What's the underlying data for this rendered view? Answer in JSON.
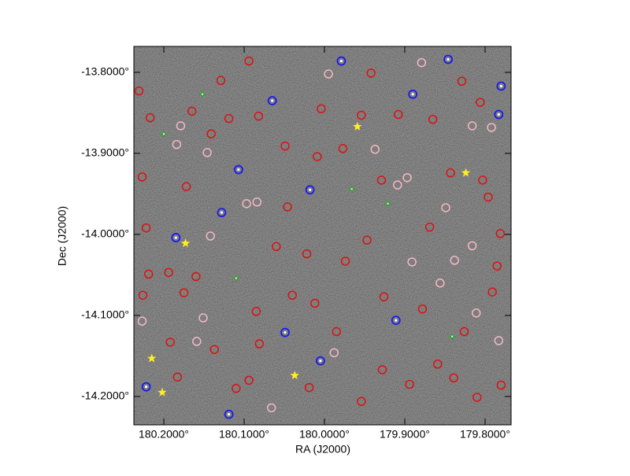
{
  "chart_data": {
    "type": "scatter",
    "x_label": "RA (J2000)",
    "y_label": "Dec (J2000)",
    "xlim": [
      180.2373,
      179.7676
    ],
    "ylim": [
      -14.235,
      -13.768
    ],
    "xticks": [
      {
        "value": 180.2,
        "label": "180.2000°"
      },
      {
        "value": 180.1,
        "label": "180.1000°"
      },
      {
        "value": 180.0,
        "label": "180.0000°"
      },
      {
        "value": 179.9,
        "label": "179.9000°"
      },
      {
        "value": 179.8,
        "label": "179.8000°"
      }
    ],
    "yticks": [
      {
        "value": -13.8,
        "label": "-13.8000°"
      },
      {
        "value": -13.9,
        "label": "-13.9000°"
      },
      {
        "value": -14.0,
        "label": "-14.0000°"
      },
      {
        "value": -14.1,
        "label": "-14.1000°"
      },
      {
        "value": -14.2,
        "label": "-14.2000°"
      }
    ],
    "series": [
      {
        "color": "#dd1111",
        "marker": "circle",
        "x": [
          180.231,
          180.217,
          180.227,
          180.172,
          180.222,
          180.219,
          180.226,
          180.194,
          180.16,
          180.192,
          180.183,
          180.137,
          180.11,
          180.094,
          180.085,
          180.06,
          180.046,
          180.009,
          179.977,
          179.954,
          179.942,
          179.908,
          179.865,
          179.829,
          179.806,
          179.803,
          179.781,
          179.785,
          179.791,
          179.826,
          179.859,
          179.894,
          179.928,
          179.954,
          179.985,
          180.012,
          180.04,
          180.022,
          179.974,
          179.947,
          179.926,
          179.878,
          179.839,
          179.81,
          179.78,
          179.796,
          180.141,
          180.119,
          180.082,
          180.049,
          180.129,
          180.094,
          180.165,
          180.004,
          179.929,
          179.869,
          179.843,
          180.019,
          180.081,
          180.175
        ],
        "y": [
          -13.823,
          -13.856,
          -13.929,
          -13.941,
          -13.992,
          -14.049,
          -14.075,
          -14.047,
          -14.052,
          -14.133,
          -14.176,
          -14.142,
          -14.19,
          -14.18,
          -14.095,
          -14.015,
          -13.966,
          -13.904,
          -13.894,
          -13.853,
          -13.801,
          -13.852,
          -13.858,
          -13.811,
          -13.837,
          -13.933,
          -13.999,
          -14.039,
          -14.071,
          -14.12,
          -14.16,
          -14.185,
          -14.167,
          -14.206,
          -14.12,
          -14.085,
          -14.075,
          -14.024,
          -14.033,
          -14.007,
          -14.077,
          -14.092,
          -14.177,
          -14.201,
          -14.186,
          -13.954,
          -13.876,
          -13.857,
          -13.854,
          -13.891,
          -13.81,
          -13.786,
          -13.848,
          -13.845,
          -13.933,
          -13.991,
          -13.924,
          -14.189,
          -14.135,
          -14.072
        ]
      },
      {
        "color": "#f4b8c4",
        "marker": "circle",
        "x": [
          180.179,
          180.184,
          180.146,
          180.097,
          180.084,
          179.995,
          179.879,
          179.909,
          179.897,
          179.849,
          179.816,
          179.792,
          179.838,
          179.891,
          179.816,
          180.151,
          179.988,
          179.783,
          179.811,
          180.066,
          180.142,
          179.937,
          179.856,
          180.159,
          180.227
        ],
        "y": [
          -13.866,
          -13.889,
          -13.899,
          -13.962,
          -13.96,
          -13.802,
          -13.788,
          -13.939,
          -13.93,
          -13.967,
          -13.866,
          -13.868,
          -14.032,
          -14.034,
          -14.014,
          -14.103,
          -14.146,
          -14.131,
          -14.097,
          -14.214,
          -14.002,
          -13.895,
          -14.06,
          -14.132,
          -14.107
        ]
      },
      {
        "color": "#1a1aee",
        "marker": "dotted-circle",
        "x": [
          179.78,
          179.783,
          180.128,
          180.185,
          180.018,
          180.005,
          180.119,
          180.222,
          180.049,
          179.911,
          180.107,
          179.846,
          180.065,
          179.89,
          179.979
        ],
        "y": [
          -13.817,
          -13.852,
          -13.973,
          -14.004,
          -13.945,
          -14.156,
          -14.222,
          -14.188,
          -14.121,
          -14.106,
          -13.92,
          -13.784,
          -13.835,
          -13.827,
          -13.786
        ]
      },
      {
        "color": "#22aa22",
        "marker": "cross",
        "x": [
          180.152,
          180.2,
          180.11,
          179.966,
          179.921,
          179.841
        ],
        "y": [
          -13.827,
          -13.876,
          -14.054,
          -13.944,
          -13.962,
          -14.126
        ]
      },
      {
        "color": "#ffee22",
        "marker": "star",
        "x": [
          179.959,
          179.824,
          180.173,
          180.215,
          180.037,
          180.202
        ],
        "y": [
          -13.867,
          -13.924,
          -14.011,
          -14.153,
          -14.174,
          -14.195
        ]
      }
    ]
  }
}
